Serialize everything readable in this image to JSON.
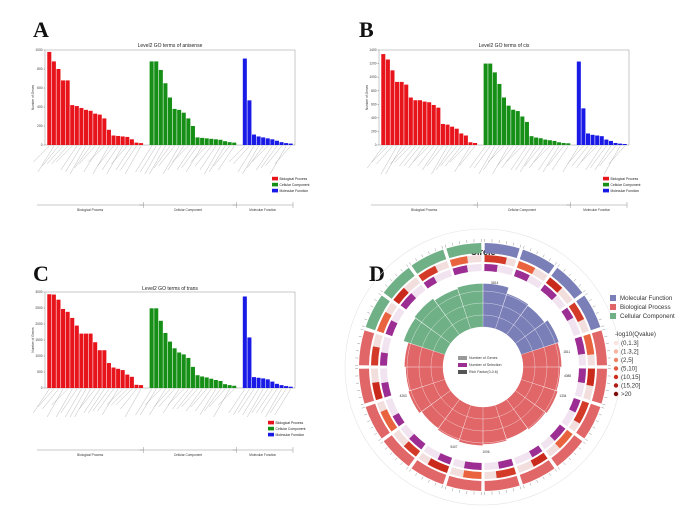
{
  "panels": [
    {
      "letter": "A",
      "title": "Level2 GO terms of anisense",
      "ylabel": "Number of Genes",
      "ymax": 1000,
      "yticks": [
        "0",
        "200",
        "400",
        "600",
        "800",
        "1000"
      ],
      "groups": [
        "Biological Process",
        "Cellular Component",
        "Molecular Function"
      ],
      "legend": [
        "Biological Process",
        "Cellular Component",
        "Molecular Function"
      ]
    },
    {
      "letter": "B",
      "title": "Level2 GO terms of cis",
      "ylabel": "Number of Genes",
      "ymax": 1400,
      "yticks": [
        "0",
        "200",
        "400",
        "600",
        "800",
        "1000",
        "1200",
        "1400"
      ],
      "groups": [
        "Biological Process",
        "Cellular Component",
        "Molecular Function"
      ],
      "legend": [
        "Biological Process",
        "Cellular Component",
        "Molecular Function"
      ]
    },
    {
      "letter": "C",
      "title": "Level2 GO terms of trans",
      "ylabel": "Number of Genes",
      "ymax": 3000,
      "yticks": [
        "0",
        "500",
        "1000",
        "1500",
        "2000",
        "2500",
        "3000"
      ],
      "groups": [
        "Biological Process",
        "Cellular Component",
        "Molecular Function"
      ],
      "legend": [
        "Biological Process",
        "Cellular Component",
        "Molecular Function"
      ]
    },
    {
      "letter": "D",
      "title": "Circle",
      "legend_groups": [
        "Molecular Function",
        "Biological Process",
        "Cellular Component"
      ],
      "qvalue_title": "-log10(Qvalue)",
      "qvalue_bins": [
        "(0,1.3]",
        "(1.3,2]",
        "(2,5]",
        "(5,10]",
        "(10,15]",
        "(15,20]",
        ">20"
      ],
      "center_legend": [
        "Number of Genes",
        "Number of Selection",
        "Rich Factor(0-0.6)"
      ],
      "labels_gene_count": [
        "5814",
        "1334",
        "1006",
        "5407",
        "4088",
        "4263",
        "1811"
      ]
    }
  ],
  "colors": {
    "bp": "#e8141c",
    "cc": "#168f16",
    "mf": "#1a1ae6",
    "circle_mf": "#7b7fb8",
    "circle_bp": "#e06668",
    "circle_cc": "#70b086",
    "purple": "#9c2d92"
  },
  "chart_data": [
    {
      "type": "bar",
      "title": "Level2 GO terms of anisense",
      "ylabel": "Number of Genes",
      "ylim": [
        0,
        1000
      ],
      "series": [
        {
          "name": "Biological Process",
          "values": [
            980,
            880,
            800,
            680,
            680,
            420,
            410,
            390,
            370,
            360,
            330,
            320,
            280,
            160,
            100,
            95,
            90,
            85,
            60,
            25,
            20
          ]
        },
        {
          "name": "Cellular Component",
          "values": [
            880,
            880,
            790,
            650,
            500,
            380,
            370,
            340,
            280,
            200,
            80,
            75,
            70,
            65,
            60,
            55,
            40,
            30,
            25
          ]
        },
        {
          "name": "Molecular Function",
          "values": [
            910,
            470,
            110,
            90,
            80,
            70,
            60,
            45,
            30,
            20,
            15
          ]
        }
      ]
    },
    {
      "type": "bar",
      "title": "Level2 GO terms of cis",
      "ylabel": "Number of Genes",
      "ylim": [
        0,
        1400
      ],
      "series": [
        {
          "name": "Biological Process",
          "values": [
            1340,
            1260,
            1100,
            930,
            930,
            890,
            700,
            660,
            660,
            640,
            630,
            590,
            550,
            310,
            300,
            270,
            240,
            170,
            140,
            40,
            30
          ]
        },
        {
          "name": "Cellular Component",
          "values": [
            1200,
            1200,
            1070,
            900,
            700,
            580,
            520,
            500,
            420,
            340,
            130,
            110,
            100,
            80,
            70,
            60,
            40,
            30,
            25
          ]
        },
        {
          "name": "Molecular Function",
          "values": [
            1230,
            540,
            170,
            150,
            140,
            130,
            80,
            60,
            30,
            20,
            15
          ]
        }
      ]
    },
    {
      "type": "bar",
      "title": "Level2 GO terms of trans",
      "ylabel": "Number of Genes",
      "ylim": [
        0,
        3000
      ],
      "series": [
        {
          "name": "Biological Process",
          "values": [
            2930,
            2920,
            2760,
            2470,
            2380,
            2190,
            1950,
            1700,
            1700,
            1700,
            1430,
            1180,
            1180,
            780,
            640,
            600,
            560,
            420,
            350,
            100,
            90
          ]
        },
        {
          "name": "Cellular Component",
          "values": [
            2490,
            2490,
            2100,
            1720,
            1450,
            1240,
            1110,
            1050,
            940,
            660,
            400,
            360,
            330,
            290,
            250,
            220,
            120,
            90,
            70
          ]
        },
        {
          "name": "Molecular Function",
          "values": [
            2860,
            1580,
            340,
            320,
            300,
            270,
            200,
            130,
            90,
            60,
            40
          ]
        }
      ]
    }
  ]
}
